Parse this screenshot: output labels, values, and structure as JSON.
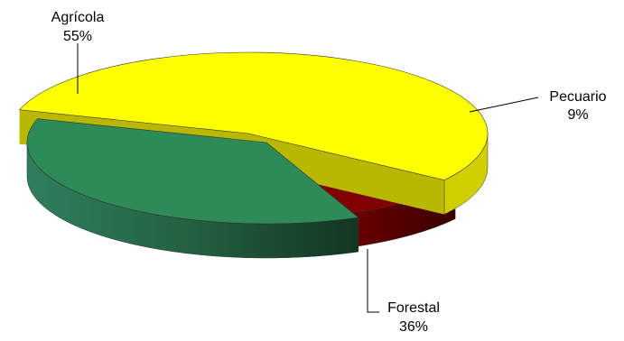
{
  "chart_data": {
    "type": "pie",
    "title": "",
    "slices": [
      {
        "category": "Agrícola",
        "value": 55,
        "label": "55%",
        "color": "#FFFF00"
      },
      {
        "category": "Pecuario",
        "value": 9,
        "label": "9%",
        "color": "#800000"
      },
      {
        "category": "Forestal",
        "value": 36,
        "label": "36%",
        "color": "#2E8B57"
      }
    ],
    "style": "3d-exploded"
  }
}
